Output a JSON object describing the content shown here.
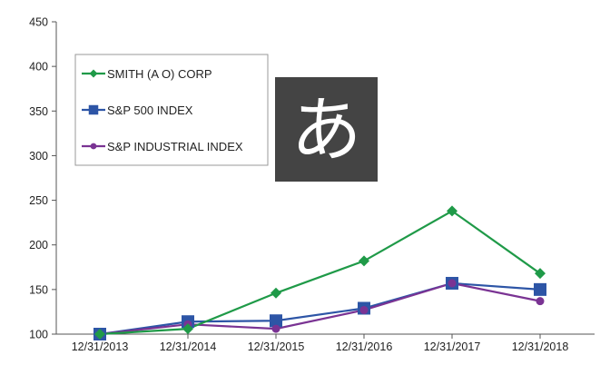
{
  "chart_data": {
    "type": "line",
    "categories": [
      "12/31/2013",
      "12/31/2014",
      "12/31/2015",
      "12/31/2016",
      "12/31/2017",
      "12/31/2018"
    ],
    "series": [
      {
        "name": "SMITH (A O) CORP",
        "values": [
          100,
          106,
          146,
          182,
          238,
          168
        ],
        "color": "#1f9a48",
        "marker": "diamond"
      },
      {
        "name": "S&P 500 INDEX",
        "values": [
          100,
          114,
          115,
          129,
          157,
          150
        ],
        "color": "#2d55a6",
        "marker": "square"
      },
      {
        "name": "S&P INDUSTRIAL INDEX",
        "values": [
          100,
          111,
          106,
          127,
          157,
          137
        ],
        "color": "#7a3393",
        "marker": "circle"
      }
    ],
    "ylim": [
      100,
      450
    ],
    "yticks": [
      100,
      150,
      200,
      250,
      300,
      350,
      400,
      450
    ],
    "title": "",
    "xlabel": "",
    "ylabel": "",
    "grid": false,
    "legend_position": "top-left"
  },
  "overlay": {
    "glyph": "あ",
    "background": "#444444",
    "color": "#ffffff"
  }
}
